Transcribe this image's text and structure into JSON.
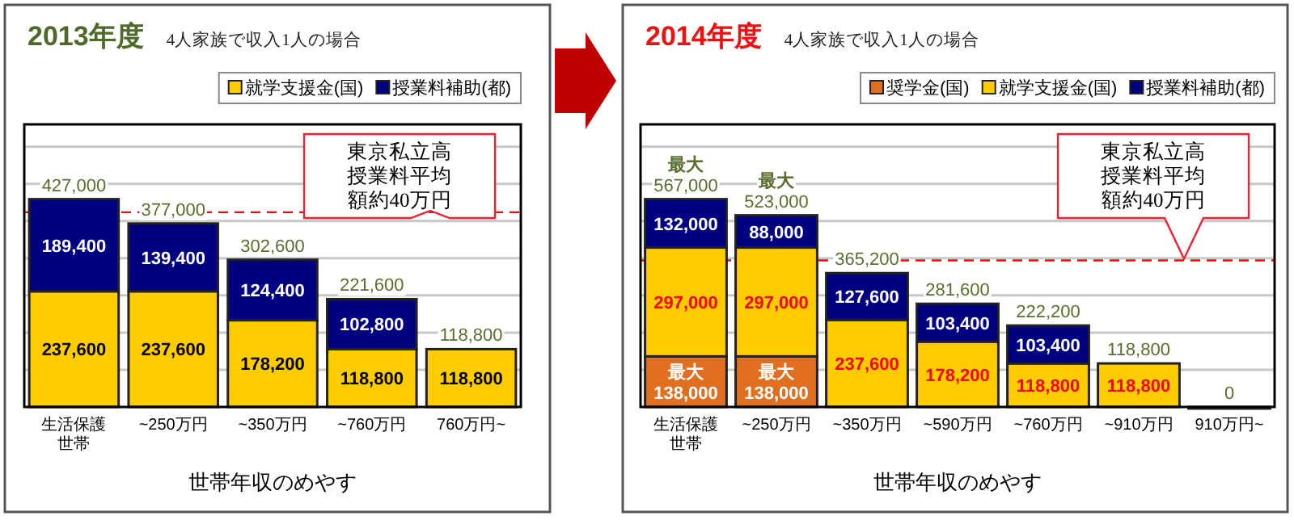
{
  "chart_data": [
    {
      "type": "bar",
      "stacked": true,
      "title": "2013年度",
      "subtitle": "4人家族で収入1人の場合",
      "xlabel": "世帯年収のめやす",
      "categories": [
        "生活保護世帯",
        "~250万円",
        "~350万円",
        "~760万円",
        "760万円~"
      ],
      "series": [
        {
          "name": "就学支援金(国)",
          "color": "#ffcc00",
          "values": [
            237600,
            237600,
            178200,
            118800,
            118800
          ],
          "value_labels": [
            "237,600",
            "237,600",
            "178,200",
            "118,800",
            "118,800"
          ]
        },
        {
          "name": "授業料補助(都)",
          "color": "#000080",
          "values": [
            189400,
            139400,
            124400,
            102800,
            null
          ],
          "value_labels": [
            "189,400",
            "139,400",
            "124,400",
            "102,800",
            null
          ]
        }
      ],
      "totals": [
        "427,000",
        "377,000",
        "302,600",
        "221,600",
        "118,800"
      ],
      "tick_labels": "x",
      "grid": "y",
      "legend": "top right",
      "ref_lines": [
        {
          "axis": "y",
          "value": 400000,
          "label": "東京私立高授業料平均額約40万円",
          "color": "#ff0000",
          "line_style": "dashed"
        }
      ]
    },
    {
      "type": "bar",
      "stacked": true,
      "title": "2014年度",
      "subtitle": "4人家族で収入1人の場合",
      "xlabel": "世帯年収のめやす",
      "categories": [
        "生活保護世帯",
        "~250万円",
        "~350万円",
        "~590万円",
        "~760万円",
        "~910万円",
        "910万円~"
      ],
      "series": [
        {
          "name": "奨学金(国)",
          "color": "#e07020",
          "values": [
            138000,
            138000,
            null,
            null,
            null,
            null,
            null
          ],
          "value_labels": [
            "最大\n138,000",
            "最大\n138,000",
            null,
            null,
            null,
            null,
            null
          ]
        },
        {
          "name": "就学支援金(国)",
          "color": "#ffcc00",
          "values": [
            297000,
            297000,
            237600,
            178200,
            118800,
            118800,
            0
          ],
          "value_labels": [
            "297,000",
            "297,000",
            "237,600",
            "178,200",
            "118,800",
            "118,800",
            null
          ]
        },
        {
          "name": "授業料補助(都)",
          "color": "#000080",
          "values": [
            132000,
            88000,
            127600,
            103400,
            103400,
            null,
            null
          ],
          "value_labels": [
            "132,000",
            "88,000",
            "127,600",
            "103,400",
            "103,400",
            null,
            null
          ]
        }
      ],
      "totals": [
        "最大\n567,000",
        "最大\n523,000",
        "365,200",
        "281,600",
        "222,200",
        "118,800",
        "0"
      ],
      "tick_labels": "x",
      "grid": "y",
      "legend": "top right",
      "ref_lines": [
        {
          "axis": "y",
          "value": 400000,
          "label": "東京私立高授業料平均額約40万円",
          "color": "#ff0000",
          "line_style": "dashed"
        }
      ]
    }
  ]
}
